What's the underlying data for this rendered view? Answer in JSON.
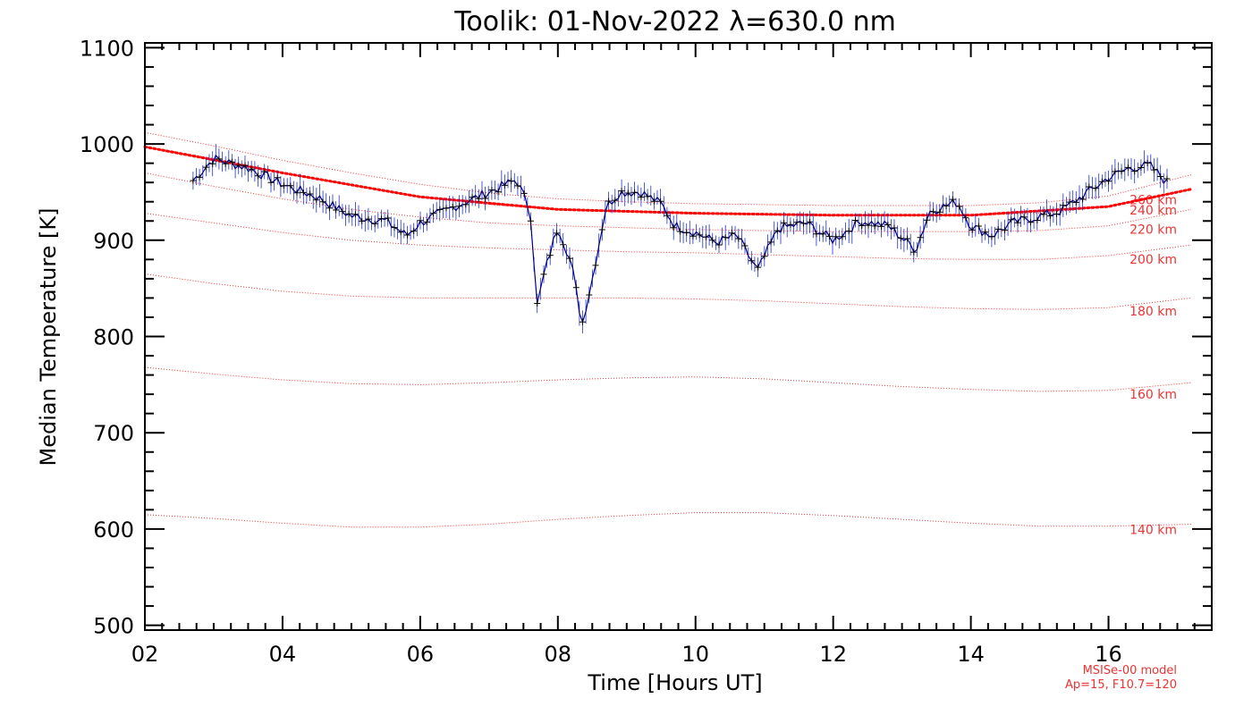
{
  "chart_data": {
    "type": "line",
    "title": "Toolik: 01-Nov-2022 λ=630.0 nm",
    "xlabel": "Time [Hours UT]",
    "ylabel": "Median Temperature [K]",
    "xlim": [
      2,
      17.5
    ],
    "ylim": [
      495,
      1105
    ],
    "x_ticks": [
      2,
      4,
      6,
      8,
      10,
      12,
      14,
      16
    ],
    "x_tick_labels": [
      "02",
      "04",
      "06",
      "08",
      "10",
      "12",
      "14",
      "16"
    ],
    "y_ticks": [
      500,
      600,
      700,
      800,
      900,
      1000,
      1100
    ],
    "y_tick_labels": [
      "500",
      "600",
      "700",
      "800",
      "900",
      "1000",
      "1100"
    ],
    "grid": false,
    "series": [
      {
        "color": "#000080",
        "markers": "plus",
        "error_bars": true,
        "x": [
          2.7,
          3.0,
          3.5,
          4.0,
          4.5,
          5.0,
          5.5,
          5.8,
          6.0,
          6.5,
          7.0,
          7.4,
          7.6,
          7.7,
          7.8,
          8.0,
          8.2,
          8.35,
          8.5,
          8.7,
          8.9,
          9.2,
          9.5,
          9.7,
          10.0,
          10.3,
          10.6,
          10.9,
          11.2,
          11.6,
          12.0,
          12.4,
          12.8,
          13.2,
          13.4,
          13.8,
          14.0,
          14.3,
          14.6,
          15.0,
          15.3,
          15.6,
          16.0,
          16.3,
          16.6,
          16.85
        ],
        "y": [
          962,
          985,
          975,
          958,
          945,
          925,
          920,
          905,
          918,
          935,
          950,
          963,
          930,
          832,
          865,
          915,
          875,
          812,
          860,
          935,
          950,
          950,
          938,
          915,
          908,
          898,
          905,
          868,
          912,
          918,
          900,
          920,
          915,
          890,
          930,
          940,
          915,
          905,
          918,
          925,
          930,
          945,
          965,
          975,
          978,
          960
        ]
      },
      {
        "name": "MSISe-00 model",
        "color": "#ff0000",
        "dotted": true,
        "x": [
          2.0,
          4.0,
          6.0,
          8.0,
          10.0,
          12.0,
          14.0,
          16.0,
          17.2
        ],
        "y": [
          997,
          970,
          945,
          932,
          928,
          926,
          926,
          935,
          953
        ]
      }
    ],
    "altitude_curves": [
      {
        "label": "140 km",
        "x": [
          2.0,
          3.0,
          4.0,
          5.0,
          6.0,
          7.0,
          8.0,
          9.0,
          10.0,
          11.0,
          12.0,
          13.0,
          14.0,
          15.0,
          16.0,
          17.2
        ],
        "y": [
          615,
          611,
          606,
          602,
          602,
          605,
          610,
          614,
          617,
          617,
          614,
          610,
          606,
          603,
          603,
          605
        ]
      },
      {
        "label": "160 km",
        "x": [
          2.0,
          3.0,
          4.0,
          5.0,
          6.0,
          7.0,
          8.0,
          9.0,
          10.0,
          11.0,
          12.0,
          13.0,
          14.0,
          15.0,
          16.0,
          17.2
        ],
        "y": [
          768,
          761,
          755,
          751,
          750,
          752,
          755,
          757,
          758,
          756,
          752,
          748,
          745,
          743,
          744,
          752
        ]
      },
      {
        "label": "180 km",
        "x": [
          2.0,
          3.0,
          4.0,
          5.0,
          6.0,
          7.0,
          8.0,
          9.0,
          10.0,
          11.0,
          12.0,
          13.0,
          14.0,
          15.0,
          16.0,
          17.2
        ],
        "y": [
          865,
          855,
          847,
          842,
          840,
          840,
          840,
          840,
          839,
          837,
          834,
          831,
          829,
          828,
          830,
          840
        ]
      },
      {
        "label": "200 km",
        "x": [
          2.0,
          3.0,
          4.0,
          5.0,
          6.0,
          7.0,
          8.0,
          9.0,
          10.0,
          11.0,
          12.0,
          13.0,
          14.0,
          15.0,
          16.0,
          17.2
        ],
        "y": [
          928,
          918,
          908,
          900,
          895,
          892,
          890,
          888,
          887,
          885,
          883,
          881,
          880,
          880,
          884,
          895
        ]
      },
      {
        "label": "220 km",
        "x": [
          2.0,
          3.0,
          4.0,
          5.0,
          6.0,
          7.0,
          8.0,
          9.0,
          10.0,
          11.0,
          12.0,
          13.0,
          14.0,
          15.0,
          16.0,
          17.2
        ],
        "y": [
          970,
          956,
          943,
          932,
          924,
          918,
          915,
          913,
          911,
          910,
          909,
          909,
          909,
          910,
          915,
          932
        ]
      },
      {
        "label": "240 km",
        "x": [
          2.0,
          3.0,
          4.0,
          5.0,
          6.0,
          7.0,
          8.0,
          9.0,
          10.0,
          11.0,
          12.0,
          13.0,
          14.0,
          15.0,
          16.0,
          17.2
        ],
        "y": [
          997,
          985,
          970,
          957,
          945,
          937,
          932,
          930,
          928,
          927,
          926,
          926,
          926,
          928,
          935,
          953
        ]
      },
      {
        "label": "260 km",
        "x": [
          2.0,
          3.0,
          4.0,
          5.0,
          6.0,
          7.0,
          8.0,
          9.0,
          10.0,
          11.0,
          12.0,
          13.0,
          14.0,
          15.0,
          16.0,
          17.2
        ],
        "y": [
          1012,
          998,
          983,
          970,
          958,
          949,
          943,
          940,
          938,
          937,
          936,
          936,
          936,
          939,
          946,
          968
        ]
      }
    ],
    "annotations": [
      "MSISe-00 model",
      "Ap=15, F10.7=120"
    ]
  }
}
